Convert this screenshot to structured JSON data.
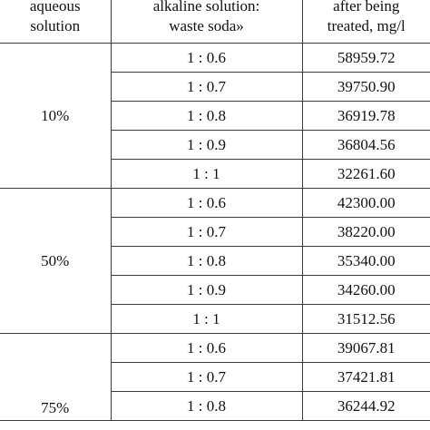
{
  "header": {
    "col1": [
      "aqueous",
      "solution"
    ],
    "col2": [
      "alkaline solution:",
      "waste soda»"
    ],
    "col3": [
      "after being",
      "treated, mg/l"
    ]
  },
  "groups": [
    {
      "concentration": "10%",
      "rows": [
        {
          "ratio": "1 : 0.6",
          "value": "58959.72"
        },
        {
          "ratio": "1 : 0.7",
          "value": "39750.90"
        },
        {
          "ratio": "1 : 0.8",
          "value": "36919.78"
        },
        {
          "ratio": "1 : 0.9",
          "value": "36804.56"
        },
        {
          "ratio": "1 : 1",
          "value": "32261.60"
        }
      ]
    },
    {
      "concentration": "50%",
      "rows": [
        {
          "ratio": "1 : 0.6",
          "value": "42300.00"
        },
        {
          "ratio": "1 : 0.7",
          "value": "38220.00"
        },
        {
          "ratio": "1 : 0.8",
          "value": "35340.00"
        },
        {
          "ratio": "1 : 0.9",
          "value": "34260.00"
        },
        {
          "ratio": "1 : 1",
          "value": "31512.56"
        }
      ]
    },
    {
      "concentration": "75%",
      "rows": [
        {
          "ratio": "1 : 0.6",
          "value": "39067.81"
        },
        {
          "ratio": "1 : 0.7",
          "value": "37421.81"
        },
        {
          "ratio": "1 : 0.8",
          "value": "36244.92"
        }
      ]
    }
  ]
}
